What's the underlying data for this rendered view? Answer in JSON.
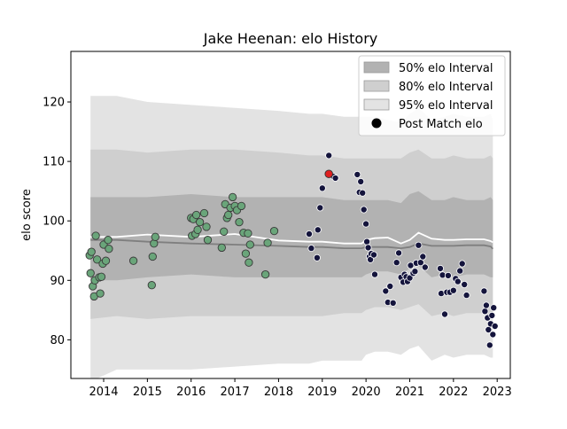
{
  "colors": {
    "band50": "#b2b2b2",
    "band80": "#cfcfcf",
    "band95": "#e3e3e3",
    "mean_line": "#7f7f7f",
    "elo_line": "#ffffff",
    "green_point": "#6aa57a",
    "navy_point": "#14143c",
    "highlight_point": "#e02020",
    "axis": "#000000"
  },
  "chart_data": {
    "type": "scatter",
    "title": "Jake Heenan: elo History",
    "xlabel": "",
    "ylabel": "elo score",
    "xlim": [
      2013.25,
      2023.3
    ],
    "ylim": [
      73.5,
      128.5
    ],
    "xticks": [
      2014,
      2015,
      2016,
      2017,
      2018,
      2019,
      2020,
      2021,
      2022,
      2023
    ],
    "xtick_labels": [
      "2014",
      "2015",
      "2016",
      "2017",
      "2018",
      "2019",
      "2020",
      "2021",
      "2022",
      "2023"
    ],
    "yticks": [
      80,
      90,
      100,
      110,
      120
    ],
    "ytick_labels": [
      "80",
      "90",
      "100",
      "110",
      "120"
    ],
    "legend_position": "top-right",
    "legend": [
      {
        "label": "50% elo Interval",
        "kind": "band50"
      },
      {
        "label": "80% elo Interval",
        "kind": "band80"
      },
      {
        "label": "95% elo Interval",
        "kind": "band95"
      },
      {
        "label": "Post Match elo",
        "kind": "point"
      }
    ],
    "x_band": [
      2013.7,
      2014.3,
      2015.0,
      2016.0,
      2017.0,
      2018.0,
      2018.7,
      2019.0,
      2019.5,
      2019.9,
      2020.0,
      2020.2,
      2020.5,
      2020.8,
      2021.0,
      2021.2,
      2021.5,
      2021.8,
      2022.0,
      2022.3,
      2022.7,
      2022.85,
      2022.9
    ],
    "band95": {
      "lower": [
        73,
        75,
        75,
        75,
        75.5,
        76,
        76,
        76.5,
        76.5,
        76.5,
        77.5,
        78,
        78,
        77.5,
        78.5,
        79,
        76.5,
        77.5,
        77,
        77.5,
        77.5,
        77,
        77
      ],
      "upper": [
        121,
        121,
        120,
        119.5,
        119,
        118.5,
        118,
        118,
        117.5,
        117.5,
        117.5,
        117.5,
        117,
        116.5,
        118,
        119,
        117,
        117.5,
        118,
        117.5,
        117.5,
        118,
        117
      ]
    },
    "band80": {
      "lower": [
        83.5,
        84,
        83.5,
        84,
        84,
        84,
        84,
        84,
        84.5,
        84.5,
        85,
        85.5,
        85.5,
        85,
        85.5,
        86,
        84,
        84.5,
        84,
        84.5,
        84.5,
        84,
        84
      ]
    },
    "band80_upper": [
      112,
      112,
      111.5,
      112,
      112,
      111.5,
      111,
      111,
      110.5,
      110.5,
      110.5,
      110.5,
      110.5,
      110.5,
      111.5,
      112,
      110.5,
      110.5,
      111,
      110.5,
      110.5,
      111,
      110.5
    ],
    "band50": {
      "lower": [
        90,
        90,
        90.5,
        91,
        90.5,
        90.5,
        90.5,
        90.5,
        90.5,
        90.5,
        91,
        91.5,
        91.5,
        91,
        92,
        92.5,
        90.5,
        91,
        90.5,
        91,
        91,
        90.5,
        90.5
      ],
      "upper": [
        104,
        104,
        104,
        104.5,
        104,
        104,
        104,
        104,
        103.5,
        103.5,
        103.5,
        103.5,
        103.5,
        103,
        104.5,
        105,
        103.5,
        103.5,
        104,
        103.5,
        103.5,
        104,
        103.5
      ]
    },
    "mean_line": [
      96.8,
      96.8,
      96.5,
      96.2,
      96.0,
      95.8,
      95.6,
      95.6,
      95.4,
      95.4,
      95.6,
      95.6,
      95.6,
      95.4,
      95.6,
      96.2,
      95.8,
      95.8,
      95.8,
      95.9,
      95.9,
      95.7,
      95.3
    ],
    "elo_line": [
      97.3,
      97.3,
      97.7,
      97.3,
      97.8,
      96.7,
      96.5,
      96.5,
      96.2,
      96.2,
      96.8,
      97.1,
      97.2,
      96.2,
      96.8,
      98.0,
      97.0,
      96.8,
      96.8,
      96.9,
      96.9,
      96.6,
      96.4
    ],
    "points_green": [
      [
        2013.68,
        94.2
      ],
      [
        2013.7,
        91.2
      ],
      [
        2013.72,
        94.8
      ],
      [
        2013.75,
        89.0
      ],
      [
        2013.78,
        87.3
      ],
      [
        2013.8,
        90.0
      ],
      [
        2013.82,
        97.5
      ],
      [
        2013.85,
        93.5
      ],
      [
        2013.9,
        90.5
      ],
      [
        2013.92,
        87.8
      ],
      [
        2013.95,
        90.6
      ],
      [
        2013.98,
        92.8
      ],
      [
        2014.0,
        96.0
      ],
      [
        2014.05,
        93.3
      ],
      [
        2014.1,
        96.8
      ],
      [
        2014.12,
        95.3
      ],
      [
        2014.68,
        93.3
      ],
      [
        2015.1,
        89.2
      ],
      [
        2015.12,
        94.0
      ],
      [
        2015.15,
        96.2
      ],
      [
        2015.18,
        97.3
      ],
      [
        2016.0,
        100.5
      ],
      [
        2016.02,
        97.5
      ],
      [
        2016.05,
        100.3
      ],
      [
        2016.1,
        97.8
      ],
      [
        2016.12,
        101.0
      ],
      [
        2016.15,
        98.5
      ],
      [
        2016.2,
        99.8
      ],
      [
        2016.3,
        101.3
      ],
      [
        2016.35,
        99.0
      ],
      [
        2016.38,
        96.8
      ],
      [
        2016.7,
        95.5
      ],
      [
        2016.75,
        98.2
      ],
      [
        2016.78,
        102.8
      ],
      [
        2016.82,
        100.5
      ],
      [
        2016.85,
        101.0
      ],
      [
        2016.9,
        102.2
      ],
      [
        2016.95,
        104.0
      ],
      [
        2017.0,
        102.5
      ],
      [
        2017.05,
        101.8
      ],
      [
        2017.1,
        99.8
      ],
      [
        2017.15,
        102.5
      ],
      [
        2017.2,
        98.0
      ],
      [
        2017.25,
        94.5
      ],
      [
        2017.3,
        97.9
      ],
      [
        2017.32,
        93.0
      ],
      [
        2017.35,
        96.0
      ],
      [
        2017.7,
        91.0
      ],
      [
        2017.75,
        96.3
      ],
      [
        2017.9,
        98.3
      ]
    ],
    "points_navy": [
      [
        2018.7,
        97.8
      ],
      [
        2018.75,
        95.4
      ],
      [
        2018.88,
        93.8
      ],
      [
        2018.9,
        98.5
      ],
      [
        2018.95,
        102.2
      ],
      [
        2019.0,
        105.5
      ],
      [
        2019.15,
        111.0
      ],
      [
        2019.25,
        107.5
      ],
      [
        2019.3,
        107.2
      ],
      [
        2019.8,
        107.8
      ],
      [
        2019.85,
        104.8
      ],
      [
        2019.88,
        106.6
      ],
      [
        2019.92,
        104.7
      ],
      [
        2019.95,
        101.9
      ],
      [
        2020.0,
        99.5
      ],
      [
        2020.02,
        96.5
      ],
      [
        2020.05,
        95.5
      ],
      [
        2020.08,
        94.0
      ],
      [
        2020.1,
        93.5
      ],
      [
        2020.12,
        94.5
      ],
      [
        2020.18,
        94.3
      ],
      [
        2020.2,
        91.0
      ],
      [
        2020.45,
        88.2
      ],
      [
        2020.5,
        86.3
      ],
      [
        2020.55,
        89.0
      ],
      [
        2020.62,
        86.2
      ],
      [
        2020.7,
        93.0
      ],
      [
        2020.75,
        94.6
      ],
      [
        2020.8,
        90.5
      ],
      [
        2020.85,
        89.7
      ],
      [
        2020.88,
        91.0
      ],
      [
        2020.92,
        90.6
      ],
      [
        2020.95,
        89.8
      ],
      [
        2021.0,
        90.4
      ],
      [
        2021.02,
        92.5
      ],
      [
        2021.08,
        91.2
      ],
      [
        2021.12,
        91.5
      ],
      [
        2021.15,
        92.9
      ],
      [
        2021.2,
        95.9
      ],
      [
        2021.25,
        93.0
      ],
      [
        2021.3,
        94.0
      ],
      [
        2021.35,
        92.2
      ],
      [
        2021.7,
        92.0
      ],
      [
        2021.72,
        87.8
      ],
      [
        2021.75,
        90.9
      ],
      [
        2021.8,
        84.3
      ],
      [
        2021.85,
        88.0
      ],
      [
        2021.88,
        90.8
      ],
      [
        2021.92,
        88.0
      ],
      [
        2022.0,
        88.3
      ],
      [
        2022.05,
        90.3
      ],
      [
        2022.1,
        89.8
      ],
      [
        2022.15,
        91.6
      ],
      [
        2022.2,
        92.8
      ],
      [
        2022.25,
        89.3
      ],
      [
        2022.3,
        87.5
      ],
      [
        2022.7,
        88.2
      ],
      [
        2022.72,
        84.8
      ],
      [
        2022.75,
        85.8
      ],
      [
        2022.78,
        83.7
      ],
      [
        2022.8,
        81.7
      ],
      [
        2022.83,
        79.1
      ],
      [
        2022.85,
        82.7
      ],
      [
        2022.88,
        84.1
      ],
      [
        2022.9,
        80.9
      ],
      [
        2022.92,
        85.4
      ],
      [
        2022.95,
        82.3
      ]
    ],
    "points_highlight": [
      [
        2019.15,
        107.9
      ]
    ]
  }
}
